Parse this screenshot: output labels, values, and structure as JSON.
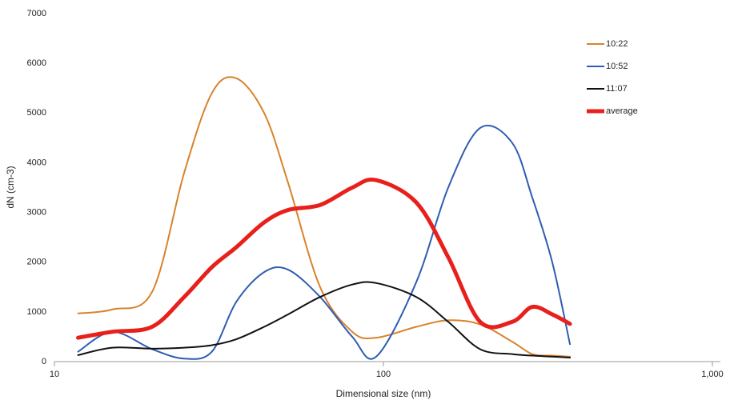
{
  "chart_data": {
    "type": "line",
    "x_label": "Dimensional size (nm)",
    "y_label": "dN (cm-3)",
    "x": [
      11.8,
      15,
      19.8,
      24.8,
      30.1,
      35.7,
      43.4,
      51.3,
      64.2,
      80.4,
      95.1,
      125.9,
      157.4,
      196.8,
      246.3,
      283.5,
      326,
      369
    ],
    "series": [
      {
        "name": "10:22",
        "color": "#d9822b",
        "values": [
          970,
          1050,
          1400,
          3800,
          5400,
          5700,
          5000,
          3600,
          1500,
          600,
          480,
          700,
          830,
          750,
          400,
          150,
          120,
          100
        ]
      },
      {
        "name": "10:52",
        "color": "#2e5db3",
        "values": [
          200,
          600,
          250,
          60,
          200,
          1200,
          1800,
          1850,
          1300,
          500,
          100,
          1600,
          3500,
          4700,
          4400,
          3300,
          2000,
          350
        ]
      },
      {
        "name": "11:07",
        "color": "#111111",
        "values": [
          130,
          280,
          260,
          280,
          330,
          450,
          700,
          950,
          1300,
          1550,
          1580,
          1300,
          800,
          250,
          150,
          120,
          100,
          80
        ]
      },
      {
        "name": "average",
        "color": "#e8201c",
        "values": [
          480,
          600,
          700,
          1300,
          1900,
          2300,
          2800,
          3050,
          3150,
          3500,
          3650,
          3200,
          2100,
          800,
          800,
          1100,
          950,
          760
        ]
      }
    ],
    "xlim": [
      10,
      1000
    ],
    "xticks": [
      10,
      100,
      {
        "value": 1000,
        "label": "1,000"
      }
    ],
    "x_log": true,
    "ylim": [
      0,
      7000
    ],
    "yticks": [
      0,
      1000,
      2000,
      3000,
      4000,
      5000,
      6000,
      7000
    ],
    "grid": false,
    "legend": "top-right"
  }
}
